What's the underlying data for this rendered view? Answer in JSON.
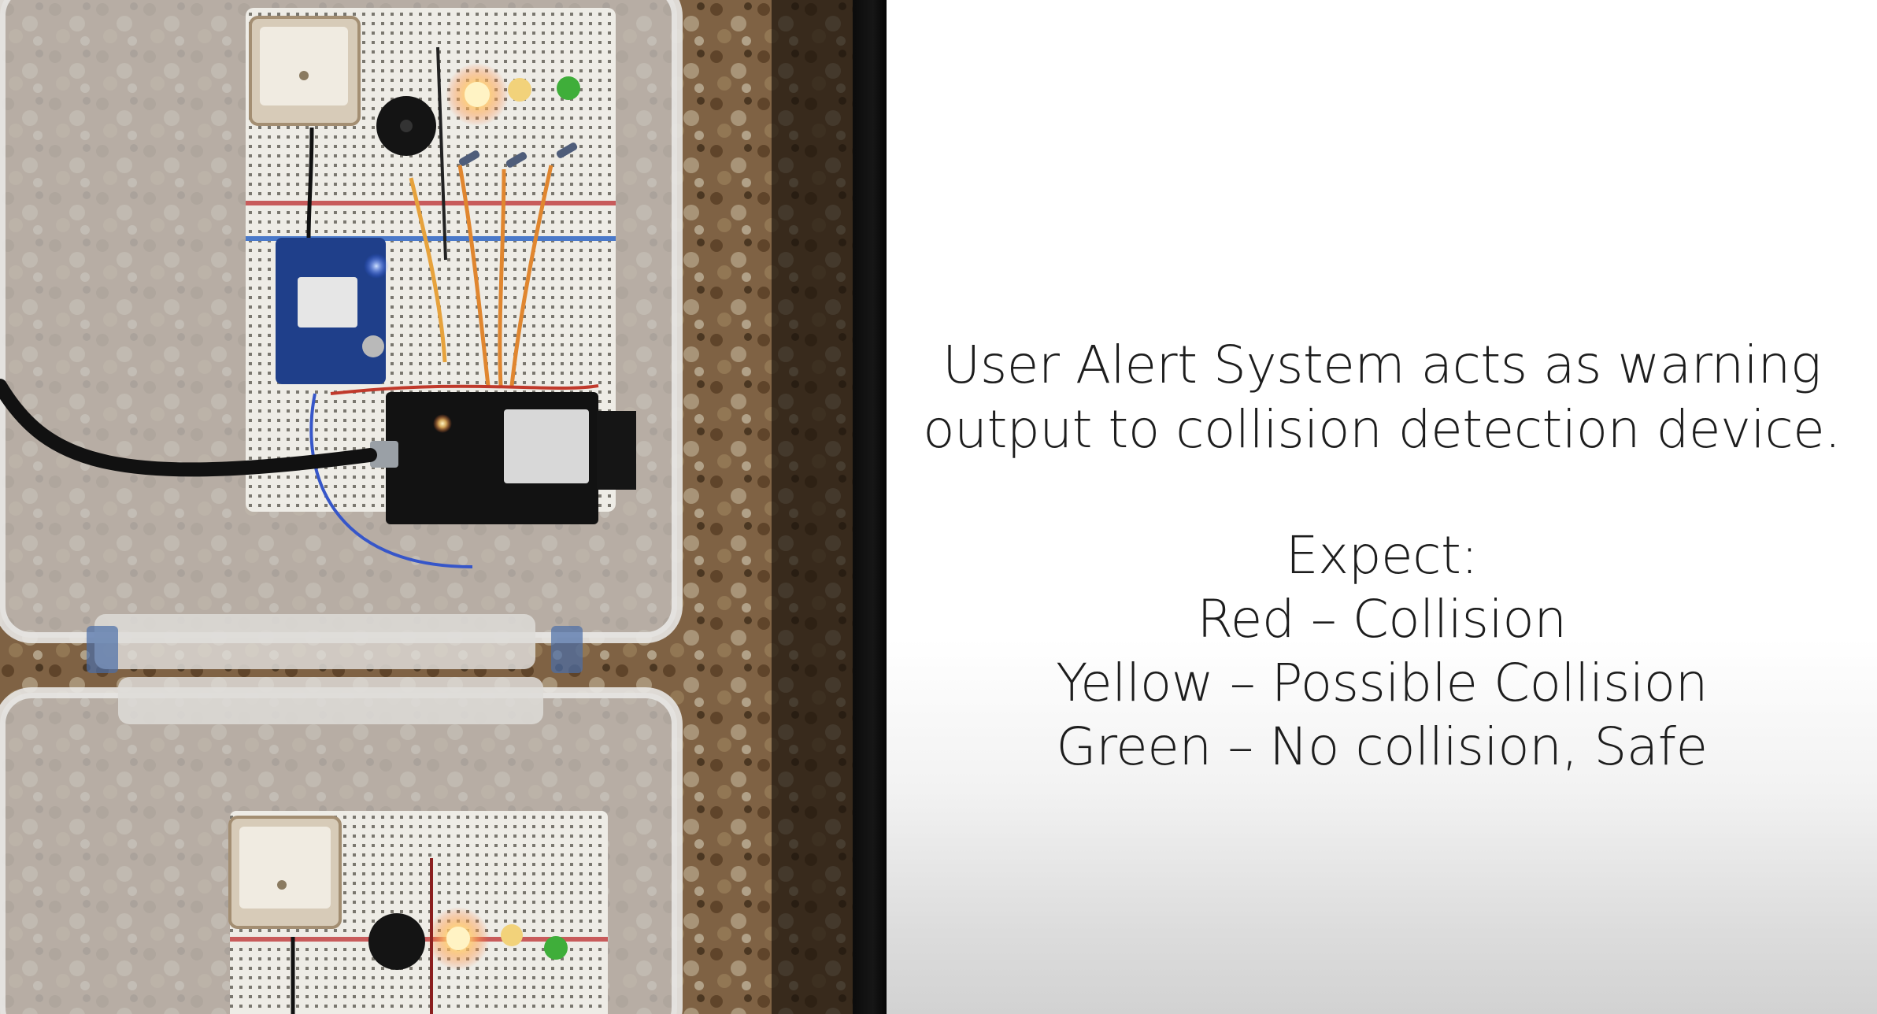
{
  "slide": {
    "headline_line_1": "User Alert System acts as warning",
    "headline_line_2": "output to collision detection device.",
    "expect_label": "Expect:",
    "items": [
      "Red – Collision",
      "Yellow – Possible Collision",
      "Green – No collision, Safe"
    ]
  },
  "photo": {
    "background_color": "#6b5238",
    "led_colors": {
      "red": "#ffe9a8",
      "yellow": "#f2d27a",
      "green": "#3fae3a"
    }
  }
}
